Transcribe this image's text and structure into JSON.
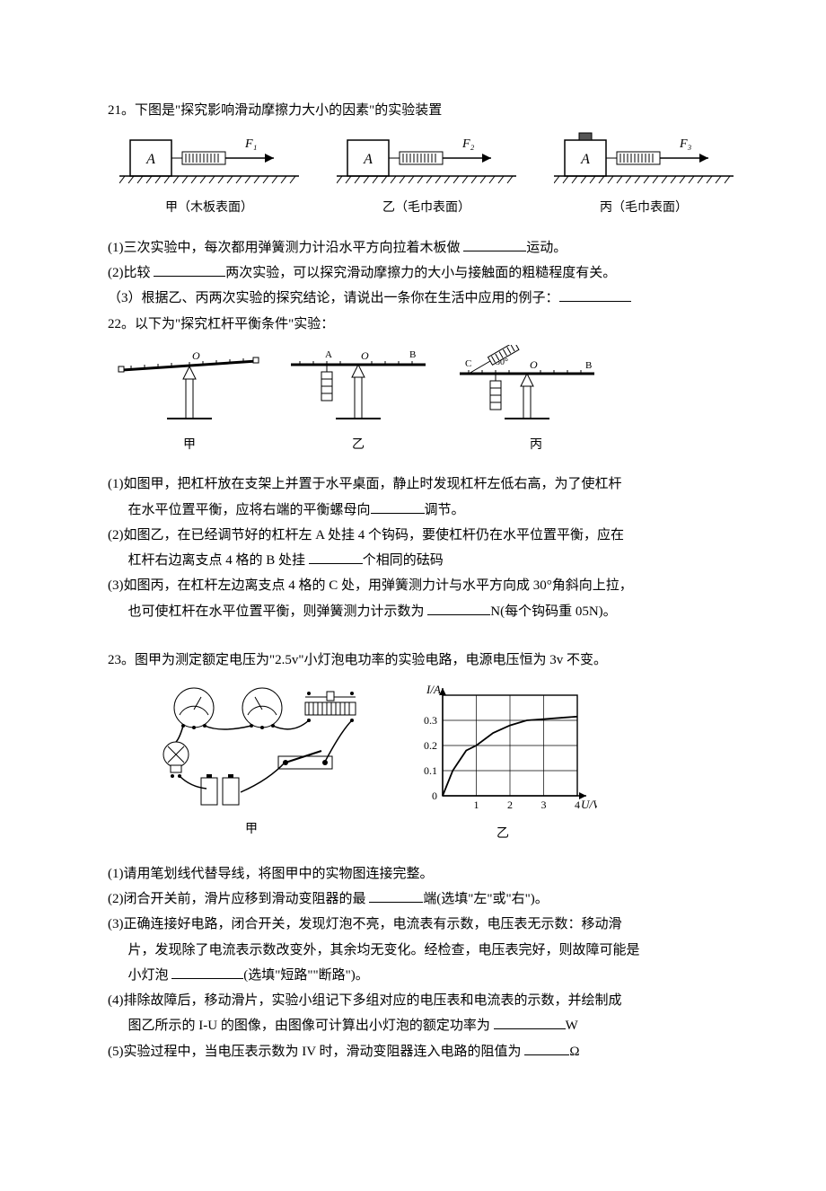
{
  "q21": {
    "number": "21。",
    "stem": "下图是\"探究影响滑动摩擦力大小的因素\"的实验装置",
    "figs": {
      "jia": {
        "block": "A",
        "force": "F₁",
        "caption": "甲（木板表面）"
      },
      "yi": {
        "block": "A",
        "force": "F₂",
        "caption": "乙（毛巾表面）"
      },
      "bing": {
        "block": "A",
        "force": "F₃",
        "caption": "丙（毛巾表面）"
      }
    },
    "p1a": "(1)三次实验中，每次都用弹簧测力计沿水平方向拉着木板做 ",
    "p1b": "运动。",
    "p2a": "(2)比较 ",
    "p2b": "两次实验，可以探究滑动摩擦力的大小与接触面的粗糙程度有关。",
    "p3a": "（3）根据乙、丙两次实验的探究结论，请说出一条你在生活中应用的例子：",
    "p3b": ""
  },
  "q22": {
    "number": "22。",
    "stem": "以下为\"探究杠杆平衡条件\"实验：",
    "figs": {
      "jia": "甲",
      "yi": "乙",
      "bing": "丙"
    },
    "p1a": "(1)如图甲，把杠杆放在支架上并置于水平桌面，静止时发现杠杆左低右高，为了使杠杆",
    "p1b": "在水平位置平衡，应将右端的平衡螺母向",
    "p1c": "调节。",
    "p2a": "(2)如图乙，在已经调节好的杠杆左 A 处挂 4 个钩码，要使杠杆仍在水平位置平衡，应在",
    "p2b": "杠杆右边离支点 4 格的 B 处挂 ",
    "p2c": "个相同的砝码",
    "p3a": "(3)如图丙，在杠杆左边离支点 4 格的 C 处，用弹簧测力计与水平方向成 30°角斜向上拉，",
    "p3b": "也可使杠杆在水平位置平衡，则弹簧测力计示数为 ",
    "p3c": "N(每个钩码重 05N)。"
  },
  "q23": {
    "number": "23。",
    "stem": "图甲为测定额定电压为\"2.5v\"小灯泡电功率的实验电路，电源电压恒为 3v 不变。",
    "chart": {
      "type": "line",
      "xlabel": "U/V",
      "ylabel": "I/A",
      "xlim": [
        0,
        4
      ],
      "ylim": [
        0,
        0.4
      ],
      "xticks": [
        0,
        1,
        2,
        3,
        4
      ],
      "yticks_labels": [
        "0",
        "0.1",
        "0.2",
        "0.3"
      ],
      "yticks_vals": [
        0,
        0.1,
        0.2,
        0.3
      ],
      "grid_color": "#000000",
      "line_color": "#000000",
      "points": [
        [
          0,
          0
        ],
        [
          0.3,
          0.1
        ],
        [
          0.7,
          0.18
        ],
        [
          1.0,
          0.2
        ],
        [
          1.5,
          0.25
        ],
        [
          2.0,
          0.28
        ],
        [
          2.5,
          0.3
        ],
        [
          3.0,
          0.305
        ],
        [
          3.5,
          0.31
        ],
        [
          4.0,
          0.315
        ]
      ],
      "caption": "乙"
    },
    "fig_jia_caption": "甲",
    "p1": "(1)请用笔划线代替导线，将图甲中的实物图连接完整。",
    "p2a": "(2)闭合开关前，滑片应移到滑动变阻器的最 ",
    "p2b": "端(选填\"左\"或\"右\")。",
    "p3a": "(3)正确连接好电路，闭合开关，发现灯泡不亮，电流表有示数，电压表无示数：移动滑",
    "p3b": "片，发现除了电流表示数改变外，其余均无变化。经检查，电压表完好，则故障可能是",
    "p3c": "小灯泡 ",
    "p3d": "(选填\"短路\"\"断路\")。",
    "p4a": "(4)排除故障后，移动滑片，实验小组记下多组对应的电压表和电流表的示数，并绘制成",
    "p4b": "图乙所示的 I-U 的图像，由图像可计算出小灯泡的额定功率为 ",
    "p4c": "W",
    "p5a": "(5)实验过程中，当电压表示数为 IV 时，滑动变阻器连入电路的阻值为 ",
    "p5b": "Ω"
  }
}
